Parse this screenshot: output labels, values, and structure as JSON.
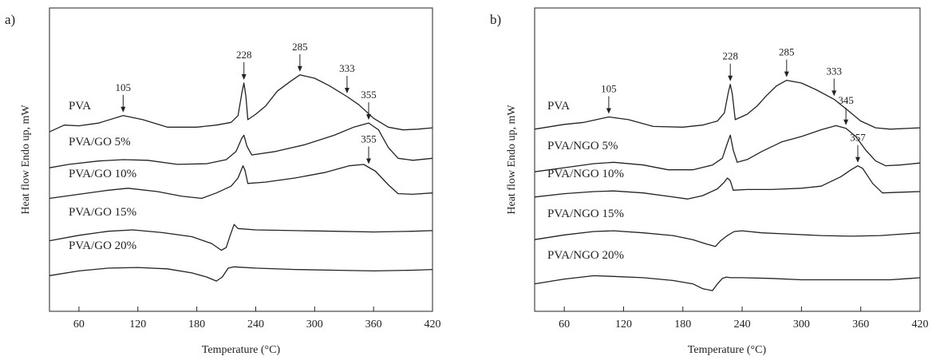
{
  "chart_data": [
    {
      "type": "line",
      "panel_label": "a)",
      "xlabel": "Temperature (°C)",
      "ylabel": "Heat flow Endo up, mW",
      "xlim": [
        30,
        420
      ],
      "xticks": [
        60,
        120,
        180,
        240,
        300,
        360,
        420
      ],
      "yticks_shown": false,
      "series": [
        {
          "name": "PVA",
          "points": [
            [
              30,
              -0.6
            ],
            [
              45,
              -0.1
            ],
            [
              60,
              -0.15
            ],
            [
              80,
              0.05
            ],
            [
              105,
              0.6
            ],
            [
              125,
              0.3
            ],
            [
              150,
              -0.25
            ],
            [
              180,
              -0.25
            ],
            [
              200,
              -0.1
            ],
            [
              215,
              0.1
            ],
            [
              222,
              0.6
            ],
            [
              226,
              2.3
            ],
            [
              228,
              3.0
            ],
            [
              230,
              2.0
            ],
            [
              232,
              0.3
            ],
            [
              240,
              0.7
            ],
            [
              250,
              1.3
            ],
            [
              262,
              2.4
            ],
            [
              275,
              3.1
            ],
            [
              285,
              3.6
            ],
            [
              300,
              3.35
            ],
            [
              315,
              2.8
            ],
            [
              333,
              2.0
            ],
            [
              345,
              1.4
            ],
            [
              360,
              0.4
            ],
            [
              375,
              -0.25
            ],
            [
              390,
              -0.45
            ],
            [
              405,
              -0.4
            ],
            [
              420,
              -0.3
            ]
          ]
        },
        {
          "name": "PVA/GO 5%",
          "points": [
            [
              30,
              -0.6
            ],
            [
              50,
              -0.35
            ],
            [
              80,
              -0.1
            ],
            [
              105,
              0.0
            ],
            [
              130,
              -0.05
            ],
            [
              160,
              -0.35
            ],
            [
              190,
              -0.3
            ],
            [
              210,
              0.0
            ],
            [
              220,
              0.6
            ],
            [
              226,
              1.6
            ],
            [
              228,
              1.8
            ],
            [
              231,
              1.0
            ],
            [
              236,
              0.35
            ],
            [
              260,
              0.6
            ],
            [
              290,
              1.1
            ],
            [
              320,
              1.8
            ],
            [
              340,
              2.4
            ],
            [
              355,
              2.7
            ],
            [
              365,
              2.2
            ],
            [
              375,
              0.9
            ],
            [
              385,
              0.1
            ],
            [
              400,
              -0.05
            ],
            [
              420,
              0.1
            ]
          ]
        },
        {
          "name": "PVA/GO 10%",
          "points": [
            [
              30,
              -0.5
            ],
            [
              60,
              -0.2
            ],
            [
              90,
              0.1
            ],
            [
              110,
              0.25
            ],
            [
              140,
              0.0
            ],
            [
              165,
              -0.35
            ],
            [
              185,
              -0.5
            ],
            [
              200,
              -0.1
            ],
            [
              215,
              0.4
            ],
            [
              222,
              1.0
            ],
            [
              227,
              1.9
            ],
            [
              229,
              1.6
            ],
            [
              232,
              0.6
            ],
            [
              250,
              0.7
            ],
            [
              280,
              1.0
            ],
            [
              310,
              1.4
            ],
            [
              335,
              1.9
            ],
            [
              350,
              2.0
            ],
            [
              362,
              1.5
            ],
            [
              375,
              0.5
            ],
            [
              385,
              -0.15
            ],
            [
              400,
              -0.2
            ],
            [
              420,
              -0.1
            ]
          ]
        },
        {
          "name": "PVA/GO 15%",
          "points": [
            [
              30,
              -0.8
            ],
            [
              60,
              -0.4
            ],
            [
              90,
              -0.1
            ],
            [
              115,
              0.0
            ],
            [
              145,
              -0.2
            ],
            [
              175,
              -0.5
            ],
            [
              195,
              -1.0
            ],
            [
              205,
              -1.5
            ],
            [
              210,
              -1.3
            ],
            [
              214,
              -0.4
            ],
            [
              218,
              0.4
            ],
            [
              222,
              0.1
            ],
            [
              240,
              0.0
            ],
            [
              280,
              -0.05
            ],
            [
              320,
              -0.1
            ],
            [
              360,
              -0.15
            ],
            [
              400,
              -0.1
            ],
            [
              420,
              -0.05
            ]
          ]
        },
        {
          "name": "PVA/GO 20%",
          "points": [
            [
              30,
              -0.9
            ],
            [
              60,
              -0.55
            ],
            [
              90,
              -0.35
            ],
            [
              120,
              -0.3
            ],
            [
              150,
              -0.4
            ],
            [
              175,
              -0.7
            ],
            [
              190,
              -1.0
            ],
            [
              200,
              -1.3
            ],
            [
              206,
              -1.0
            ],
            [
              212,
              -0.35
            ],
            [
              218,
              -0.25
            ],
            [
              240,
              -0.35
            ],
            [
              280,
              -0.45
            ],
            [
              320,
              -0.5
            ],
            [
              360,
              -0.55
            ],
            [
              400,
              -0.5
            ],
            [
              420,
              -0.45
            ]
          ]
        }
      ],
      "annotations": [
        {
          "text": "105",
          "x": 105,
          "series": 0
        },
        {
          "text": "228",
          "x": 228,
          "series": 0
        },
        {
          "text": "285",
          "x": 285,
          "series": 0
        },
        {
          "text": "333",
          "x": 333,
          "series": 0
        },
        {
          "text": "355",
          "x": 355,
          "series": 1
        },
        {
          "text": "355",
          "x": 355,
          "series": 2
        }
      ]
    },
    {
      "type": "line",
      "panel_label": "b)",
      "xlabel": "Temperature (°C)",
      "ylabel": "Heat flow Endo up, mW",
      "xlim": [
        30,
        420
      ],
      "xticks": [
        60,
        120,
        180,
        240,
        300,
        360,
        420
      ],
      "yticks_shown": false,
      "series": [
        {
          "name": "PVA",
          "points": [
            [
              30,
              -0.4
            ],
            [
              60,
              -0.05
            ],
            [
              80,
              0.1
            ],
            [
              105,
              0.5
            ],
            [
              125,
              0.3
            ],
            [
              150,
              -0.2
            ],
            [
              180,
              -0.25
            ],
            [
              200,
              -0.1
            ],
            [
              215,
              0.2
            ],
            [
              222,
              0.8
            ],
            [
              226,
              2.3
            ],
            [
              228,
              2.9
            ],
            [
              230,
              2.2
            ],
            [
              233,
              0.3
            ],
            [
              245,
              0.7
            ],
            [
              255,
              1.3
            ],
            [
              265,
              2.1
            ],
            [
              275,
              2.8
            ],
            [
              285,
              3.2
            ],
            [
              300,
              3.0
            ],
            [
              315,
              2.5
            ],
            [
              333,
              1.8
            ],
            [
              345,
              1.1
            ],
            [
              360,
              0.2
            ],
            [
              375,
              -0.3
            ],
            [
              390,
              -0.4
            ],
            [
              420,
              -0.3
            ]
          ]
        },
        {
          "name": "PVA/NGO 5%",
          "points": [
            [
              30,
              -0.6
            ],
            [
              60,
              -0.3
            ],
            [
              90,
              0.0
            ],
            [
              110,
              0.1
            ],
            [
              140,
              -0.1
            ],
            [
              165,
              -0.45
            ],
            [
              190,
              -0.45
            ],
            [
              210,
              -0.1
            ],
            [
              220,
              0.4
            ],
            [
              225,
              1.5
            ],
            [
              228,
              2.1
            ],
            [
              231,
              1.0
            ],
            [
              235,
              0.1
            ],
            [
              245,
              0.3
            ],
            [
              260,
              0.9
            ],
            [
              280,
              1.6
            ],
            [
              300,
              2.0
            ],
            [
              320,
              2.5
            ],
            [
              335,
              2.8
            ],
            [
              345,
              2.6
            ],
            [
              355,
              2.0
            ],
            [
              365,
              1.0
            ],
            [
              375,
              0.2
            ],
            [
              385,
              -0.15
            ],
            [
              400,
              -0.1
            ],
            [
              420,
              0.05
            ]
          ]
        },
        {
          "name": "PVA/NGO 10%",
          "points": [
            [
              30,
              -0.4
            ],
            [
              60,
              -0.15
            ],
            [
              90,
              0.0
            ],
            [
              110,
              0.05
            ],
            [
              140,
              -0.1
            ],
            [
              165,
              -0.35
            ],
            [
              185,
              -0.55
            ],
            [
              200,
              -0.3
            ],
            [
              215,
              0.2
            ],
            [
              222,
              0.7
            ],
            [
              225,
              1.0
            ],
            [
              228,
              0.8
            ],
            [
              231,
              0.1
            ],
            [
              245,
              0.15
            ],
            [
              270,
              0.15
            ],
            [
              300,
              0.25
            ],
            [
              320,
              0.4
            ],
            [
              340,
              1.1
            ],
            [
              350,
              1.6
            ],
            [
              357,
              1.9
            ],
            [
              362,
              1.7
            ],
            [
              372,
              0.6
            ],
            [
              382,
              -0.1
            ],
            [
              400,
              -0.05
            ],
            [
              420,
              0.0
            ]
          ]
        },
        {
          "name": "PVA/NGO 15%",
          "points": [
            [
              30,
              -0.6
            ],
            [
              60,
              -0.25
            ],
            [
              90,
              0.0
            ],
            [
              110,
              0.05
            ],
            [
              140,
              -0.1
            ],
            [
              170,
              -0.3
            ],
            [
              190,
              -0.6
            ],
            [
              205,
              -0.95
            ],
            [
              213,
              -1.1
            ],
            [
              218,
              -0.7
            ],
            [
              225,
              -0.3
            ],
            [
              232,
              0.0
            ],
            [
              240,
              0.05
            ],
            [
              260,
              -0.1
            ],
            [
              290,
              -0.2
            ],
            [
              320,
              -0.3
            ],
            [
              350,
              -0.35
            ],
            [
              380,
              -0.3
            ],
            [
              400,
              -0.2
            ],
            [
              420,
              -0.1
            ]
          ]
        },
        {
          "name": "PVA/NGO 20%",
          "points": [
            [
              30,
              -0.8
            ],
            [
              60,
              -0.45
            ],
            [
              90,
              -0.2
            ],
            [
              110,
              -0.25
            ],
            [
              140,
              -0.35
            ],
            [
              170,
              -0.55
            ],
            [
              190,
              -0.8
            ],
            [
              200,
              -1.15
            ],
            [
              210,
              -1.3
            ],
            [
              215,
              -0.8
            ],
            [
              220,
              -0.4
            ],
            [
              224,
              -0.3
            ],
            [
              228,
              -0.35
            ],
            [
              240,
              -0.35
            ],
            [
              270,
              -0.4
            ],
            [
              300,
              -0.5
            ],
            [
              330,
              -0.5
            ],
            [
              360,
              -0.5
            ],
            [
              390,
              -0.5
            ],
            [
              410,
              -0.4
            ],
            [
              420,
              -0.35
            ]
          ]
        }
      ],
      "annotations": [
        {
          "text": "105",
          "x": 105,
          "series": 0
        },
        {
          "text": "228",
          "x": 228,
          "series": 0
        },
        {
          "text": "285",
          "x": 285,
          "series": 0
        },
        {
          "text": "333",
          "x": 333,
          "series": 0
        },
        {
          "text": "345",
          "x": 345,
          "series": 1
        },
        {
          "text": "357",
          "x": 357,
          "series": 2
        }
      ]
    }
  ]
}
